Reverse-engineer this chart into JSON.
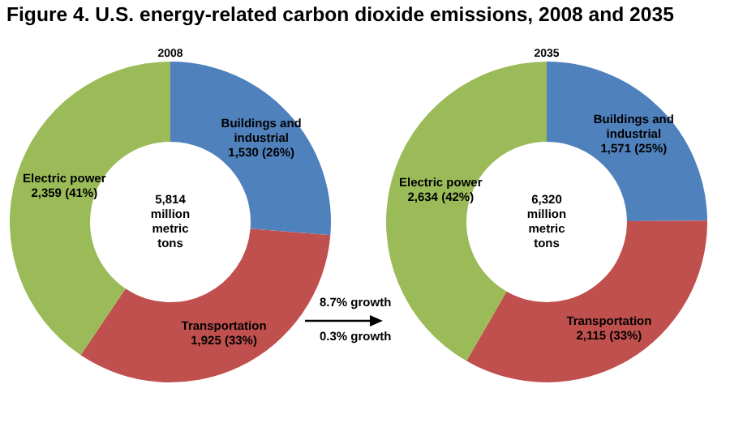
{
  "chart_data": [
    {
      "type": "donut",
      "title": "Figure 4. U.S. energy-related carbon dioxide emissions, 2008 and 2035",
      "subtitle": "2008",
      "categories": [
        "Buildings and industrial",
        "Transportation",
        "Electric power"
      ],
      "values": [
        1530,
        1925,
        2359
      ],
      "value_labels": [
        "1,530 (26%)",
        "1,925 (33%)",
        "2,359 (41%)"
      ],
      "colors": [
        "#4f81bd",
        "#c0504d",
        "#9bbb59"
      ],
      "annotations": [
        "5,814 million metric tons"
      ]
    },
    {
      "type": "donut",
      "subtitle": "2035",
      "categories": [
        "Buildings and industrial",
        "Transportation",
        "Electric power"
      ],
      "values": [
        1571,
        2115,
        2634
      ],
      "value_labels": [
        "1,571 (25%)",
        "2,115 (33%)",
        "2,634 (42%)"
      ],
      "colors": [
        "#4f81bd",
        "#c0504d",
        "#9bbb59"
      ],
      "annotations": [
        "6,320 million metric tons",
        "8.7% growth",
        "0.3% growth"
      ]
    }
  ]
}
